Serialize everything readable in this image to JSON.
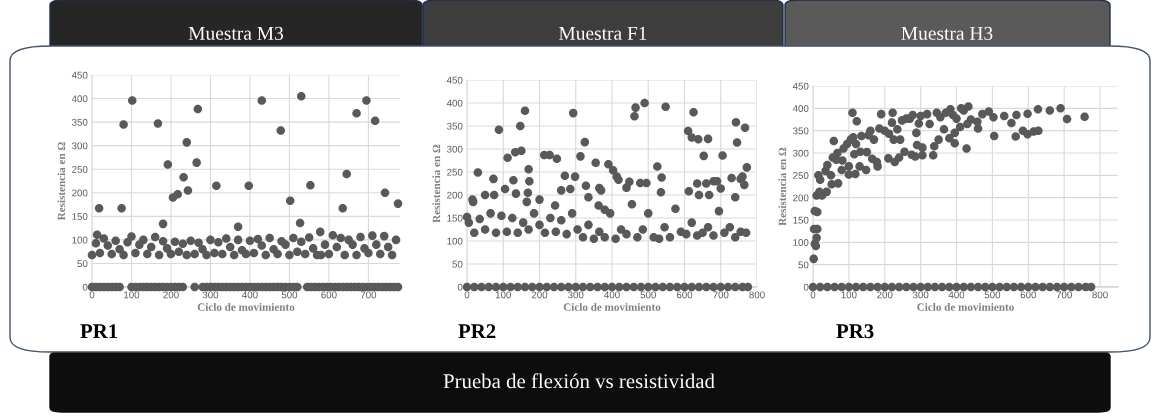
{
  "chart_data": [
    {
      "type": "scatter",
      "title": "Muestra M3",
      "xlabel": "Ciclo de movimiento",
      "ylabel": "Resistencia en Ω",
      "annotations": [
        "PR1"
      ],
      "xlim": [
        0,
        780
      ],
      "xticks": [
        0,
        100,
        200,
        300,
        400,
        500,
        600,
        700
      ],
      "ylim": [
        0,
        450
      ],
      "yticks": [
        0,
        50,
        100,
        150,
        200,
        250,
        300,
        350,
        400,
        450
      ],
      "grid": true,
      "marker": "circle",
      "series": [
        {
          "color": "#595959",
          "x": [
            18,
            13,
            75,
            80,
            102,
            167,
            180,
            192,
            205,
            217,
            232,
            240,
            243,
            268,
            265,
            315,
            370,
            397,
            430,
            478,
            502,
            530,
            527,
            553,
            578,
            635,
            645,
            670,
            695,
            717,
            742,
            775
          ],
          "values": [
            167,
            111,
            167,
            345,
            396,
            347,
            134,
            260,
            190,
            197,
            233,
            307,
            205,
            378,
            264,
            215,
            128,
            215,
            396,
            332,
            183,
            405,
            136,
            216,
            117,
            167,
            240,
            369,
            396,
            353,
            200,
            177
          ]
        },
        {
          "color": "#595959",
          "x": [
            0,
            10,
            20,
            30,
            40,
            50,
            60,
            70,
            80,
            90,
            100,
            110,
            120,
            130,
            140,
            150,
            160,
            170,
            180,
            190,
            200,
            210,
            220,
            230,
            240,
            250,
            260,
            270,
            280,
            290,
            300,
            310,
            320,
            330,
            340,
            350,
            360,
            370,
            380,
            390,
            400,
            410,
            420,
            430,
            440,
            450,
            460,
            470,
            480,
            490,
            500,
            510,
            520,
            530,
            540,
            550,
            560,
            570,
            580,
            590,
            600,
            610,
            620,
            630,
            640,
            650,
            660,
            670,
            680,
            690,
            700,
            710,
            720,
            730,
            740,
            750,
            760,
            770
          ],
          "values": [
            68,
            93,
            72,
            103,
            88,
            70,
            98,
            80,
            68,
            95,
            107,
            72,
            90,
            100,
            70,
            85,
            106,
            68,
            97,
            82,
            70,
            96,
            75,
            92,
            68,
            98,
            70,
            94,
            80,
            68,
            100,
            72,
            95,
            70,
            103,
            85,
            68,
            100,
            78,
            70,
            98,
            72,
            102,
            88,
            68,
            104,
            80,
            70,
            97,
            90,
            68,
            104,
            75,
            96,
            70,
            105,
            82,
            68,
            68,
            90,
            70,
            110,
            85,
            104,
            68,
            100,
            90,
            68,
            106,
            82,
            72,
            109,
            90,
            70,
            108,
            85,
            68,
            100
          ]
        },
        {
          "color": "#595959",
          "x": [
            0,
            10,
            20,
            30,
            40,
            50,
            60,
            70,
            100,
            110,
            120,
            130,
            140,
            150,
            160,
            170,
            180,
            190,
            200,
            210,
            220,
            230,
            260,
            280,
            290,
            300,
            310,
            320,
            330,
            340,
            350,
            360,
            370,
            380,
            390,
            400,
            410,
            420,
            430,
            440,
            450,
            460,
            470,
            480,
            490,
            500,
            510,
            520,
            545,
            555,
            565,
            575,
            585,
            595,
            605,
            615,
            625,
            635,
            645,
            655,
            665,
            675,
            685,
            695,
            705,
            715,
            725,
            735,
            745,
            755,
            765,
            775
          ],
          "values": [
            0,
            0,
            0,
            0,
            0,
            0,
            0,
            0,
            0,
            0,
            0,
            0,
            0,
            0,
            0,
            0,
            0,
            0,
            0,
            0,
            0,
            0,
            0,
            0,
            0,
            0,
            0,
            0,
            0,
            0,
            0,
            0,
            0,
            0,
            0,
            0,
            0,
            0,
            0,
            0,
            0,
            0,
            0,
            0,
            0,
            0,
            0,
            0,
            0,
            0,
            0,
            0,
            0,
            0,
            0,
            0,
            0,
            0,
            0,
            0,
            0,
            0,
            0,
            0,
            0,
            0,
            0,
            0,
            0,
            0,
            0,
            0
          ]
        }
      ]
    },
    {
      "type": "scatter",
      "title": "Muestra F1",
      "xlabel": "Ciclo de movimiento",
      "ylabel": "Resistencia en Ω",
      "annotations": [
        "PR2",
        "Prueba de flexión vs resistividad"
      ],
      "xlim": [
        0,
        800
      ],
      "xticks": [
        0,
        100,
        200,
        300,
        400,
        500,
        600,
        700,
        800
      ],
      "ylim": [
        0,
        450
      ],
      "yticks": [
        0,
        50,
        100,
        150,
        200,
        250,
        300,
        350,
        400,
        450
      ],
      "grid": true,
      "marker": "circle",
      "series": [
        {
          "color": "#595959",
          "x": [
            0,
            15,
            17,
            30,
            50,
            73,
            75,
            88,
            105,
            112,
            128,
            133,
            135,
            147,
            150,
            160,
            165,
            170,
            172,
            168,
            200,
            213,
            228,
            243,
            248,
            260,
            270,
            285,
            293,
            298,
            313,
            325,
            328,
            335,
            355,
            363,
            365,
            370,
            380,
            390,
            403,
            413,
            418,
            440,
            448,
            462,
            465,
            478,
            490,
            495,
            525,
            535,
            537,
            548,
            610,
            612,
            620,
            625,
            635,
            638,
            640,
            653,
            660,
            665,
            668,
            680,
            690,
            700,
            705,
            730,
            740,
            742,
            745,
            755,
            760,
            765,
            767,
            772
          ],
          "values": [
            152,
            190,
            185,
            249,
            200,
            235,
            200,
            342,
            213,
            281,
            232,
            293,
            203,
            350,
            296,
            383,
            185,
            256,
            230,
            205,
            190,
            287,
            287,
            177,
            279,
            210,
            242,
            213,
            378,
            240,
            284,
            315,
            220,
            195,
            270,
            177,
            215,
            210,
            168,
            267,
            254,
            240,
            233,
            216,
            229,
            371,
            390,
            226,
            400,
            226,
            262,
            206,
            238,
            392,
            339,
            208,
            325,
            380,
            225,
            321,
            200,
            285,
            225,
            322,
            200,
            230,
            230,
            214,
            286,
            237,
            195,
            358,
            314,
            235,
            240,
            222,
            346,
            260
          ]
        },
        {
          "color": "#595959",
          "x": [
            5,
            20,
            35,
            50,
            65,
            80,
            95,
            110,
            125,
            140,
            155,
            170,
            185,
            200,
            215,
            230,
            245,
            260,
            275,
            290,
            305,
            320,
            335,
            350,
            365,
            380,
            395,
            410,
            425,
            440,
            455,
            470,
            485,
            500,
            515,
            530,
            545,
            560,
            575,
            590,
            605,
            620,
            635,
            650,
            665,
            680,
            695,
            710,
            725,
            740,
            755,
            770
          ],
          "values": [
            140,
            118,
            148,
            125,
            160,
            118,
            155,
            120,
            150,
            118,
            140,
            125,
            160,
            135,
            118,
            150,
            120,
            145,
            115,
            160,
            125,
            108,
            135,
            105,
            120,
            108,
            160,
            105,
            125,
            115,
            180,
            108,
            125,
            160,
            108,
            105,
            130,
            108,
            170,
            120,
            115,
            140,
            112,
            118,
            130,
            112,
            165,
            118,
            130,
            108,
            120,
            118
          ]
        },
        {
          "color": "#595959",
          "x": [
            0,
            20,
            40,
            60,
            80,
            100,
            120,
            140,
            160,
            180,
            200,
            220,
            240,
            260,
            280,
            300,
            320,
            340,
            360,
            380,
            400,
            420,
            440,
            460,
            480,
            500,
            520,
            540,
            560,
            580,
            600,
            620,
            640,
            660,
            680,
            700,
            720,
            740,
            760,
            775
          ],
          "values": [
            0,
            0,
            0,
            0,
            0,
            0,
            0,
            0,
            0,
            0,
            0,
            0,
            0,
            0,
            0,
            0,
            0,
            0,
            0,
            0,
            0,
            0,
            0,
            0,
            0,
            0,
            0,
            0,
            0,
            0,
            0,
            0,
            0,
            0,
            0,
            0,
            0,
            0,
            0,
            0
          ]
        }
      ]
    },
    {
      "type": "scatter",
      "title": "Muestra H3",
      "xlabel": "Ciclo de movimiento",
      "ylabel": "Resistencia en Ω",
      "annotations": [
        "PR3"
      ],
      "xlim": [
        0,
        850
      ],
      "xticks": [
        0,
        100,
        200,
        300,
        400,
        500,
        600,
        700,
        800
      ],
      "ylim": [
        0,
        450
      ],
      "yticks": [
        0,
        50,
        100,
        150,
        200,
        250,
        300,
        350,
        400,
        450
      ],
      "grid": true,
      "marker": "circle",
      "series": [
        {
          "color": "#595959",
          "x": [
            2,
            3,
            5,
            5,
            8,
            10,
            12,
            12,
            10,
            15,
            18,
            20,
            25,
            35,
            38,
            40,
            50,
            52,
            55,
            58,
            65,
            68,
            70,
            80,
            82,
            85,
            95,
            100,
            100,
            105,
            110,
            112,
            115,
            118,
            120,
            122,
            130,
            132,
            135,
            148,
            150,
            155,
            160,
            165,
            170,
            178,
            180,
            185,
            190,
            200,
            210,
            212,
            220,
            222,
            225,
            228,
            235,
            240,
            243,
            248,
            255,
            260,
            270,
            275,
            278,
            285,
            288,
            290,
            295,
            300,
            305,
            305,
            318,
            325,
            335,
            338,
            345,
            350,
            355,
            365,
            370,
            380,
            383,
            390,
            395,
            395,
            400,
            410,
            413,
            420,
            428,
            430,
            433,
            440,
            458,
            460,
            472,
            490,
            503,
            505,
            533,
            553,
            565,
            567,
            585,
            598,
            598,
            615,
            627,
            628,
            660,
            690,
            708,
            757
          ],
          "values": [
            63,
            130,
            97,
            170,
            92,
            110,
            130,
            168,
            205,
            250,
            213,
            240,
            205,
            260,
            213,
            273,
            250,
            230,
            290,
            327,
            285,
            300,
            232,
            262,
            283,
            310,
            320,
            252,
            270,
            330,
            390,
            335,
            297,
            253,
            320,
            371,
            270,
            303,
            338,
            262,
            302,
            340,
            350,
            287,
            330,
            280,
            270,
            355,
            387,
            350,
            288,
            343,
            368,
            390,
            330,
            280,
            353,
            290,
            330,
            373,
            303,
            377,
            377,
            296,
            385,
            292,
            345,
            318,
            366,
            383,
            312,
            295,
            387,
            365,
            295,
            315,
            390,
            330,
            380,
            353,
            390,
            333,
            398,
            385,
            345,
            322,
            377,
            358,
            400,
            395,
            310,
            365,
            404,
            375,
            370,
            355,
            387,
            393,
            380,
            338,
            383,
            367,
            337,
            385,
            350,
            342,
            388,
            348,
            398,
            350,
            395,
            400,
            376,
            381
          ]
        },
        {
          "color": "#595959",
          "x": [
            0,
            20,
            40,
            60,
            80,
            100,
            120,
            140,
            160,
            180,
            200,
            220,
            240,
            260,
            280,
            300,
            320,
            340,
            360,
            380,
            400,
            420,
            440,
            460,
            480,
            500,
            520,
            540,
            560,
            580,
            600,
            620,
            640,
            660,
            680,
            700,
            720,
            740,
            760,
            775
          ],
          "values": [
            0,
            0,
            0,
            0,
            0,
            0,
            0,
            0,
            0,
            0,
            0,
            0,
            0,
            0,
            0,
            0,
            0,
            0,
            0,
            0,
            0,
            0,
            0,
            0,
            0,
            0,
            0,
            0,
            0,
            0,
            0,
            0,
            0,
            0,
            0,
            0,
            0,
            0,
            0,
            0
          ]
        }
      ]
    }
  ]
}
